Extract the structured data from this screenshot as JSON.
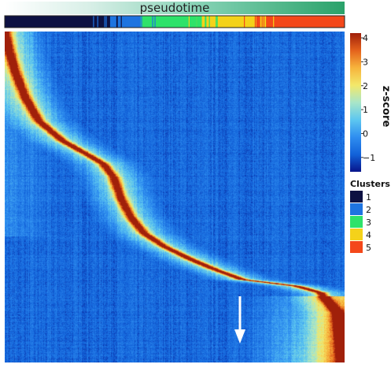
{
  "chart_data": {
    "type": "heatmap",
    "pseudotime_label": "pseudotime",
    "colorbar": {
      "title": "z-score",
      "range": [
        -1.6,
        4.2
      ],
      "ticks": [
        {
          "value": 4,
          "label": "4"
        },
        {
          "value": 3,
          "label": "3"
        },
        {
          "value": 2,
          "label": "2"
        },
        {
          "value": 1,
          "label": "1"
        },
        {
          "value": 0,
          "label": "0"
        },
        {
          "value": -1,
          "label": "−1"
        }
      ],
      "colormap": [
        "#08148a",
        "#1262d9",
        "#2f8ef0",
        "#5dc7f0",
        "#a9e6c8",
        "#f3e86a",
        "#f7b43c",
        "#e4621c",
        "#a0200a"
      ]
    },
    "clusters": {
      "title": "Clusters",
      "items": [
        {
          "label": "1",
          "color": "#0d1142"
        },
        {
          "label": "2",
          "color": "#1e74e0"
        },
        {
          "label": "3",
          "color": "#2ee26a"
        },
        {
          "label": "4",
          "color": "#f4d21a"
        },
        {
          "label": "5",
          "color": "#f4481a"
        }
      ],
      "track_segments": [
        {
          "cluster": 1,
          "start": 0.0,
          "end": 0.31
        },
        {
          "cluster": 2,
          "start": 0.31,
          "end": 0.4
        },
        {
          "cluster": 3,
          "start": 0.4,
          "end": 0.58
        },
        {
          "cluster": 4,
          "start": 0.58,
          "end": 0.74
        },
        {
          "cluster": 5,
          "start": 0.74,
          "end": 1.0
        }
      ]
    },
    "peak_curve": [
      {
        "row": 0.0,
        "col": 0.0
      },
      {
        "row": 0.05,
        "col": 0.01
      },
      {
        "row": 0.12,
        "col": 0.03
      },
      {
        "row": 0.2,
        "col": 0.06
      },
      {
        "row": 0.27,
        "col": 0.1
      },
      {
        "row": 0.33,
        "col": 0.17
      },
      {
        "row": 0.37,
        "col": 0.24
      },
      {
        "row": 0.4,
        "col": 0.29
      },
      {
        "row": 0.44,
        "col": 0.32
      },
      {
        "row": 0.5,
        "col": 0.34
      },
      {
        "row": 0.56,
        "col": 0.37
      },
      {
        "row": 0.61,
        "col": 0.41
      },
      {
        "row": 0.65,
        "col": 0.47
      },
      {
        "row": 0.69,
        "col": 0.55
      },
      {
        "row": 0.72,
        "col": 0.62
      },
      {
        "row": 0.75,
        "col": 0.7
      },
      {
        "row": 0.76,
        "col": 0.78
      },
      {
        "row": 0.77,
        "col": 0.86
      },
      {
        "row": 0.79,
        "col": 0.93
      },
      {
        "row": 0.85,
        "col": 0.98
      },
      {
        "row": 1.0,
        "col": 1.0
      }
    ],
    "annotation": {
      "type": "arrow",
      "direction": "down",
      "color": "#ffffff"
    }
  }
}
